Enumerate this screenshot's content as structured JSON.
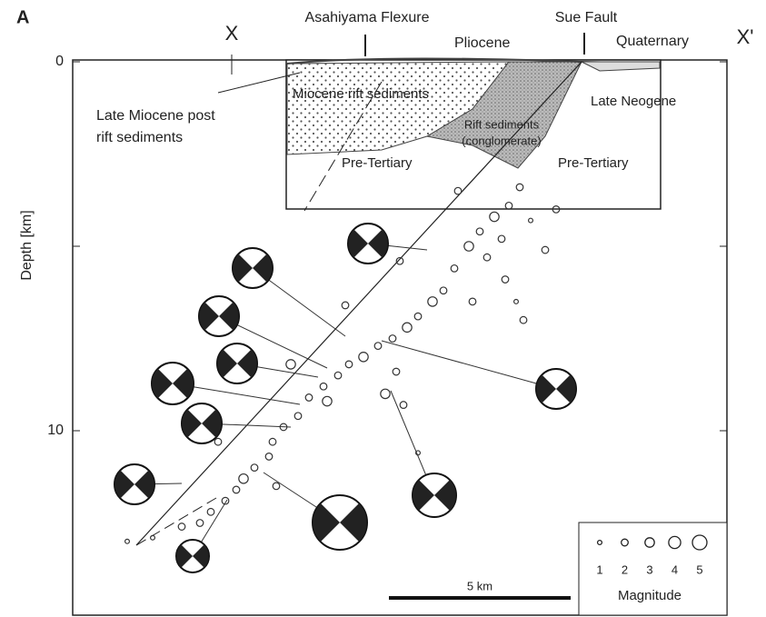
{
  "chart_data": {
    "type": "scatter",
    "panel_label": "A",
    "section_start": "X",
    "section_end": "X'",
    "y_label": "Depth [km]",
    "invert_y": true,
    "xlim": [
      0,
      18
    ],
    "ylim": [
      0,
      15
    ],
    "yticks": [
      0,
      {
        "value": 5,
        "label": null
      },
      10
    ],
    "annotations": {
      "asahiyama": "Asahiyama Flexure",
      "sue": "Sue Fault",
      "pliocene": "Pliocene",
      "quaternary": "Quaternary",
      "miocene_rift": "Miocene rift sediments",
      "late_neogene": "Late Neogene",
      "late_miocene_1": "Late Miocene post",
      "late_miocene_2": "rift sediments",
      "rift_1": "Rift sediments",
      "rift_2": "(conglomerate)",
      "pre_tertiary_left": "Pre-Tertiary",
      "pre_tertiary_right": "Pre-Tertiary"
    },
    "scale_bar": {
      "length": 5,
      "label": "5 km"
    },
    "size_legend": {
      "title": "Magnitude",
      "values": [
        1,
        2,
        3,
        4,
        5
      ]
    },
    "series": [
      {
        "name": "Hypocenters",
        "color": "#333333",
        "x": [
          12.3,
          12.0,
          11.6,
          11.2,
          11.8,
          10.9,
          11.4,
          12.6,
          13.3,
          10.5,
          11.9,
          12.2,
          12.4,
          10.2,
          9.9,
          9.5,
          9.2,
          8.8,
          8.4,
          8.0,
          7.6,
          8.9,
          7.3,
          6.9,
          7.0,
          6.5,
          6.2,
          8.6,
          9.1,
          5.8,
          5.5,
          5.4,
          5.0,
          4.7,
          4.5,
          5.6,
          4.2,
          3.8,
          3.0,
          2.2,
          1.5,
          4.0,
          3.5,
          9.0,
          10.6,
          7.5,
          6.0,
          9.5,
          13.0,
          11.0
        ],
        "values": [
          3.4,
          3.9,
          4.2,
          4.6,
          4.8,
          5.0,
          5.3,
          4.3,
          4.0,
          5.6,
          5.9,
          6.5,
          7.0,
          6.2,
          6.5,
          6.9,
          7.2,
          7.5,
          7.7,
          8.0,
          8.2,
          8.4,
          8.5,
          8.8,
          9.2,
          9.1,
          9.6,
          9.0,
          9.3,
          9.9,
          10.3,
          10.7,
          11.0,
          11.3,
          11.6,
          11.5,
          11.9,
          12.2,
          12.6,
          12.9,
          13.0,
          10.3,
          12.5,
          5.4,
          3.5,
          6.6,
          8.2,
          10.6,
          5.1,
          6.5
        ],
        "sizes": [
          2,
          2,
          3,
          2,
          2,
          3,
          2,
          1,
          2,
          2,
          2,
          1,
          2,
          2,
          3,
          2,
          3,
          2,
          2,
          3,
          2,
          2,
          2,
          2,
          3,
          2,
          2,
          3,
          2,
          2,
          2,
          2,
          2,
          3,
          2,
          2,
          2,
          2,
          2,
          1,
          1,
          2,
          2,
          2,
          2,
          2,
          3,
          1,
          2,
          2
        ]
      }
    ]
  }
}
